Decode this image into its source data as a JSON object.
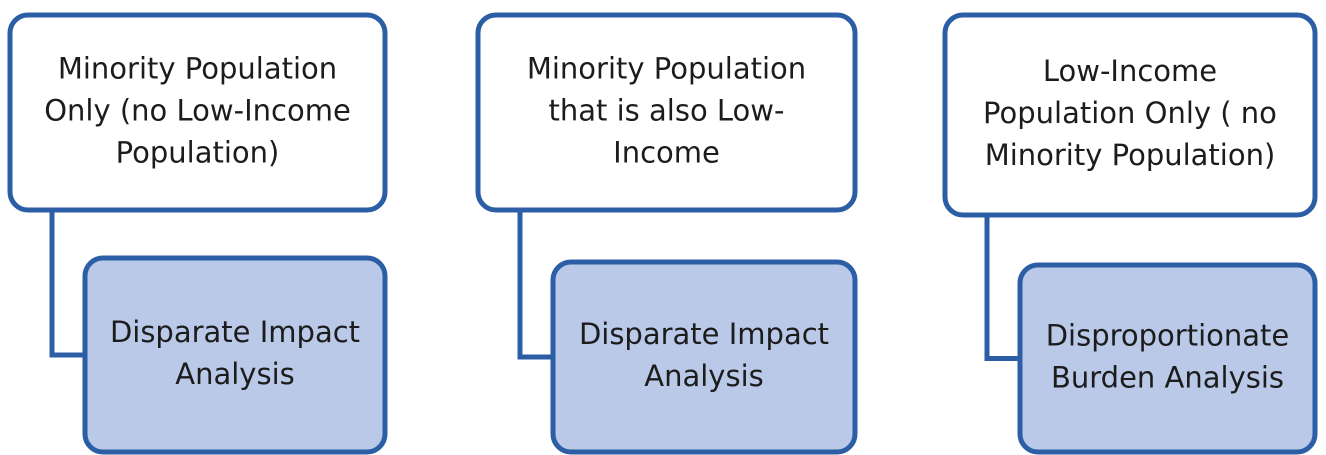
{
  "columns": [
    {
      "group": {
        "lines": [
          "Minority Population",
          "Only (no Low-Income",
          "Population)"
        ]
      },
      "analysis": {
        "lines": [
          "Disparate Impact",
          "Analysis"
        ]
      }
    },
    {
      "group": {
        "lines": [
          "Minority Population",
          "that is also Low-",
          "Income"
        ]
      },
      "analysis": {
        "lines": [
          "Disparate Impact",
          "Analysis"
        ]
      }
    },
    {
      "group": {
        "lines": [
          "Low-Income",
          "Population Only ( no",
          "Minority Population)"
        ]
      },
      "analysis": {
        "lines": [
          "Disproportionate",
          "Burden Analysis"
        ]
      }
    }
  ]
}
